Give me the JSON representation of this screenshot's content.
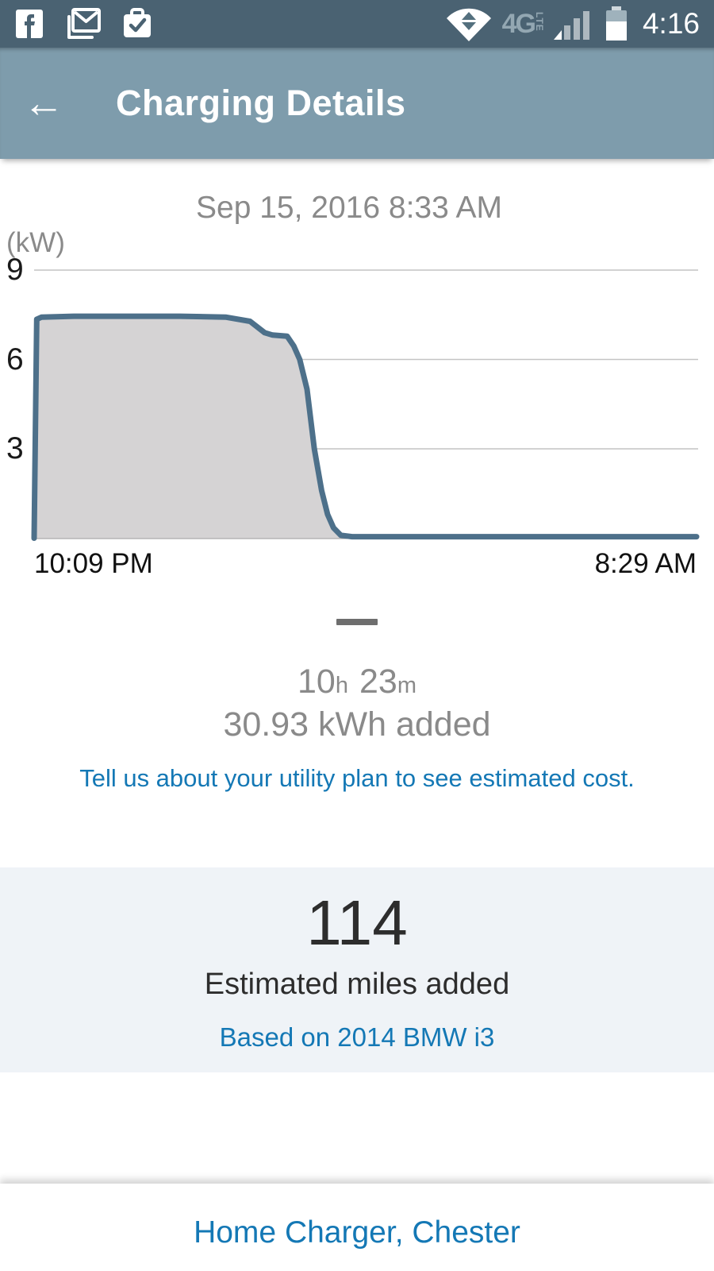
{
  "colors": {
    "status_bar_bg": "#4a6272",
    "app_bar_bg": "#7e9cac",
    "accent_blue": "#1478b5",
    "text_gray": "#8a8a8a",
    "text_dark": "#2d2d2d",
    "panel_bg": "#eff3f7"
  },
  "status_bar": {
    "time": "4:16",
    "network_label": "4G",
    "network_sub": "LTE",
    "left_icons": [
      "facebook-icon",
      "gmail-icon",
      "tasks-check-icon"
    ],
    "right_icons": [
      "wifi-updown-icon",
      "signal-bars-icon",
      "battery-icon"
    ]
  },
  "app_bar": {
    "back_icon": "←",
    "title": "Charging Details"
  },
  "chart_data": {
    "type": "area",
    "title": "Sep 15, 2016 8:33 AM",
    "ylabel": "(kW)",
    "yticks": [
      9,
      6,
      3
    ],
    "ylim": [
      0,
      9.6
    ],
    "x_start_label": "10:09 PM",
    "x_end_label": "8:29 AM",
    "grid": true,
    "legend": false,
    "series": [
      {
        "name": "Charging power (kW)",
        "points_pct_kw": [
          [
            0,
            0
          ],
          [
            0.4,
            7.35
          ],
          [
            1.1,
            7.42
          ],
          [
            6,
            7.45
          ],
          [
            14,
            7.45
          ],
          [
            22,
            7.45
          ],
          [
            29,
            7.42
          ],
          [
            32.6,
            7.28
          ],
          [
            34.8,
            6.9
          ],
          [
            36,
            6.82
          ],
          [
            38.2,
            6.78
          ],
          [
            39.2,
            6.45
          ],
          [
            40.1,
            6.0
          ],
          [
            41.2,
            5.0
          ],
          [
            42.3,
            3.0
          ],
          [
            43.4,
            1.6
          ],
          [
            44.3,
            0.8
          ],
          [
            45.2,
            0.35
          ],
          [
            46.3,
            0.1
          ],
          [
            48,
            0.05
          ],
          [
            100,
            0.05
          ]
        ]
      }
    ],
    "colors": {
      "line": "#4d708a",
      "fill": "#d5d3d4",
      "grid": "#c4c4c4",
      "baseline": "#9e9e9e"
    }
  },
  "session": {
    "duration": {
      "hours": "10",
      "hours_unit": "h",
      "minutes": "23",
      "minutes_unit": "m"
    },
    "energy": "30.93 kWh added",
    "utility_prompt": "Tell us about your utility plan to see estimated cost."
  },
  "miles_panel": {
    "value": "114",
    "label": "Estimated miles added",
    "basis": "Based on 2014 BMW i3"
  },
  "footer": {
    "charger_name": "Home Charger, Chester"
  }
}
